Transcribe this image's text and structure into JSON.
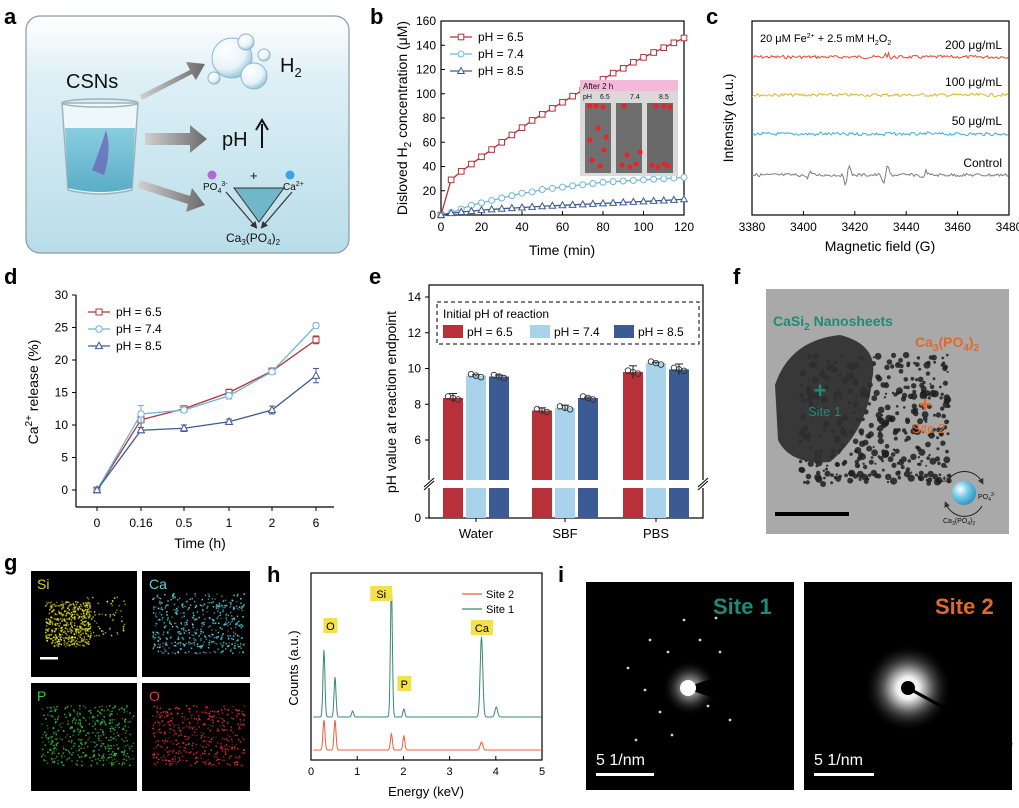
{
  "panel_letters": {
    "a": "a",
    "b": "b",
    "c": "c",
    "d": "d",
    "e": "e",
    "f": "f",
    "g": "g",
    "h": "h",
    "i": "i"
  },
  "schematic": {
    "csns": "CSNs",
    "h2": "H",
    "h2_sub": "2",
    "ph": "pH",
    "po4": "PO",
    "po4_sub": "4",
    "po4_sup": "3-",
    "ca": "Ca",
    "ca_sup": "2+",
    "plus": "+",
    "product": "Ca",
    "product_sub1": "3",
    "product_mid": "(PO",
    "product_sub2": "4",
    "product_end": ")",
    "product_sub3": "2"
  },
  "tem": {
    "casi2": "CaSi",
    "casi2_sub": "2",
    "casi2_end": " Nanosheets",
    "ca3po4": "Ca",
    "ca3po4_sub1": "3",
    "ca3po4_mid": "(PO",
    "ca3po4_sub2": "4",
    "ca3po4_end": ")",
    "ca3po4_sub3": "2",
    "site1": "Site 1",
    "site2": "Site 2",
    "inset_ca": "Ca",
    "inset_ca_sup": "2+",
    "inset_po4": "PO",
    "inset_po4_sub": "4",
    "inset_po4_sup": "3-",
    "inset_ca3": "Ca",
    "inset_ca3_sub1": "3",
    "inset_ca3_mid": "(PO",
    "inset_ca3_sub2": "4",
    "inset_ca3_end": ")",
    "inset_ca3_sub3": "2"
  },
  "maps": {
    "si": "Si",
    "ca": "Ca",
    "p": "P",
    "o": "O"
  },
  "saed": {
    "site1": "Site 1",
    "site2": "Site 2",
    "scale1": "5 1/nm",
    "scale2": "5 1/nm"
  },
  "colors": {
    "red": "#b7303a",
    "lightblue": "#a9d3ea",
    "navy": "#3c5a93",
    "teal": "#1f8a7a",
    "orange": "#e06a2a",
    "site2_line": "#e8603a",
    "site1_line": "#3a8a6e"
  },
  "chart_data": [
    {
      "panel": "b",
      "type": "line",
      "ylabel": "Disloved H",
      "ylabel_sub": "2",
      "ylabel_end": " concentration (μM)",
      "xlabel": "Time (min)",
      "xlim": [
        0,
        120
      ],
      "ylim": [
        0,
        160
      ],
      "xticks": [
        "0",
        "20",
        "40",
        "60",
        "80",
        "100",
        "120"
      ],
      "yticks": [
        "0",
        "20",
        "40",
        "60",
        "80",
        "100",
        "120",
        "140",
        "160"
      ],
      "x": [
        0,
        5,
        10,
        15,
        20,
        25,
        30,
        35,
        40,
        45,
        50,
        55,
        60,
        65,
        70,
        75,
        80,
        85,
        90,
        95,
        100,
        105,
        110,
        115,
        120
      ],
      "series": [
        {
          "name": "pH = 6.5",
          "values": [
            0,
            29,
            36,
            42,
            48,
            54,
            60,
            66,
            72,
            78,
            83,
            88,
            93,
            98,
            103,
            108,
            112,
            117,
            121,
            126,
            130,
            134,
            138,
            142,
            146
          ]
        },
        {
          "name": "pH = 7.4",
          "values": [
            0,
            2,
            5,
            8,
            10,
            12,
            14,
            16,
            18,
            19,
            21,
            22,
            23,
            24,
            25,
            26,
            27,
            27.5,
            28,
            28.5,
            29,
            29.5,
            30,
            30.5,
            31
          ]
        },
        {
          "name": "pH = 8.5",
          "values": [
            0,
            1.5,
            2.5,
            3.2,
            4,
            4.6,
            5.2,
            5.7,
            6.2,
            6.7,
            7.2,
            7.6,
            8,
            8.4,
            8.8,
            9.2,
            9.6,
            10,
            10.4,
            10.8,
            11.2,
            11.6,
            12,
            12.5,
            13
          ]
        }
      ],
      "inset": {
        "title": "After 2 h",
        "ph_label": "pH",
        "ph_values": [
          "6.5",
          "7.4",
          "8.5"
        ]
      }
    },
    {
      "panel": "c",
      "type": "line",
      "title": "20 μM Fe",
      "title_sup": "2+",
      "title_end": " + 2.5 mM H",
      "title_sub": "2",
      "title_end2": "O",
      "title_sub2": "2",
      "xlabel": "Magnetic field (G)",
      "ylabel": "Intensity (a.u.)",
      "xlim": [
        3380,
        3480
      ],
      "xticks": [
        "3380",
        "3400",
        "3420",
        "3440",
        "3460",
        "3480"
      ],
      "series": [
        {
          "name": "200 μg/mL",
          "color": "#e8452c"
        },
        {
          "name": "100 μg/mL",
          "color": "#e0b42a"
        },
        {
          "name": "50 μg/mL",
          "color": "#3aaede"
        },
        {
          "name": "Control",
          "color": "#7d7d7d"
        }
      ]
    },
    {
      "panel": "d",
      "type": "line",
      "ylabel": "Ca",
      "ylabel_sup": "2+",
      "ylabel_end": " release (%)",
      "xlabel": "Time (h)",
      "categories": [
        "0",
        "0.16",
        "0.5",
        "1",
        "2",
        "6"
      ],
      "ylim": [
        0,
        30
      ],
      "yticks": [
        "0",
        "5",
        "10",
        "15",
        "20",
        "25",
        "30"
      ],
      "series": [
        {
          "name": "pH = 6.5",
          "values": [
            0,
            10.8,
            12.5,
            15,
            18.3,
            23.1
          ],
          "errors": [
            0.3,
            1.2,
            0.4,
            0.5,
            0.3,
            0.6
          ]
        },
        {
          "name": "pH = 7.4",
          "values": [
            0,
            11.7,
            12.3,
            14.5,
            18.2,
            25.3
          ],
          "errors": [
            0.3,
            1.3,
            0.4,
            0.5,
            0.3,
            0.4
          ]
        },
        {
          "name": "pH = 8.5",
          "values": [
            0,
            9.2,
            9.5,
            10.5,
            12.3,
            17.6
          ],
          "errors": [
            0.3,
            0.4,
            0.5,
            0.4,
            0.6,
            1.1
          ]
        }
      ]
    },
    {
      "panel": "e",
      "type": "bar",
      "ylabel": "pH value at reaction endpoint",
      "legend_title": "Initial pH of reaction",
      "categories": [
        "Water",
        "SBF",
        "PBS"
      ],
      "yticks": [
        "0",
        "6",
        "8",
        "10",
        "12",
        "14"
      ],
      "series": [
        {
          "name": "pH = 6.5",
          "values": [
            8.35,
            7.65,
            9.8
          ],
          "errors": [
            0.25,
            0.15,
            0.35
          ]
        },
        {
          "name": "pH = 7.4",
          "values": [
            9.6,
            7.8,
            10.3
          ],
          "errors": [
            0.05,
            0.15,
            0.05
          ]
        },
        {
          "name": "pH = 8.5",
          "values": [
            9.55,
            8.35,
            9.95
          ],
          "errors": [
            0.08,
            0.05,
            0.3
          ]
        }
      ]
    },
    {
      "panel": "h",
      "type": "line",
      "xlabel": "Energy (keV)",
      "ylabel": "Counts (a.u.)",
      "xlim": [
        0,
        5
      ],
      "xticks": [
        "0",
        "1",
        "2",
        "3",
        "4",
        "5"
      ],
      "peak_labels": [
        "O",
        "Si",
        "P",
        "Ca"
      ],
      "series": [
        {
          "name": "Site 2",
          "color": "#e8603a"
        },
        {
          "name": "Site 1",
          "color": "#3a8a6e"
        }
      ]
    }
  ]
}
